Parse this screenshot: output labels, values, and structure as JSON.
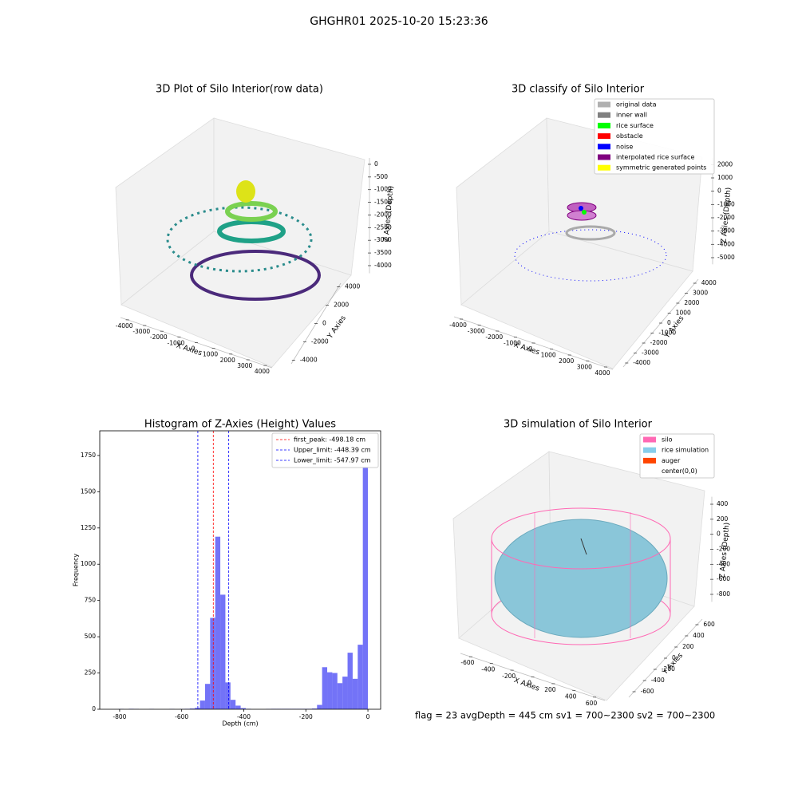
{
  "title": "GHGHR01 2025-10-20 15:23:36",
  "footer": "flag = 23  avgDepth = 445 cm  sv1 = 700~2300  sv2 = 700~2300",
  "chart_data": [
    {
      "type": "scatter3d",
      "title": "3D Plot of Silo Interior(row data)",
      "xlabel": "X Axies",
      "ylabel": "Y Axies",
      "zlabel": "Z Axies (Depth)",
      "xlim": [
        -4400,
        4400
      ],
      "ylim": [
        -4400,
        4400
      ],
      "zlim": [
        -4300,
        250
      ],
      "xticks": [
        -4000,
        -3000,
        -2000,
        -1000,
        0,
        1000,
        2000,
        3000,
        4000
      ],
      "yticks": [
        -4000,
        -2000,
        0,
        2000,
        4000
      ],
      "zticks": [
        0,
        -500,
        -1000,
        -1500,
        -2000,
        -2500,
        -3000,
        -3500,
        -4000
      ]
    },
    {
      "type": "scatter3d",
      "title": "3D classify of Silo Interior",
      "xlabel": "X Axies",
      "ylabel": "Y Axies",
      "zlabel": "Z Axies (Depth)",
      "xlim": [
        -4400,
        4400
      ],
      "ylim": [
        -4400,
        4400
      ],
      "zlim": [
        -5500,
        2500
      ],
      "xticks": [
        -4000,
        -3000,
        -2000,
        -1000,
        0,
        1000,
        2000,
        3000,
        4000
      ],
      "yticks": [
        -4000,
        -3000,
        -2000,
        -1000,
        0,
        1000,
        2000,
        3000,
        4000
      ],
      "zticks": [
        2000,
        1000,
        0,
        -1000,
        -2000,
        -3000,
        -4000,
        -5000
      ],
      "legend": [
        {
          "name": "original data",
          "color": "#b0b0b0"
        },
        {
          "name": "inner wall",
          "color": "#808080"
        },
        {
          "name": "rice surface",
          "color": "#00ff00"
        },
        {
          "name": "obstacle",
          "color": "#ff0000"
        },
        {
          "name": "noise",
          "color": "#0000ff"
        },
        {
          "name": "interpolated rice surface",
          "color": "#800080"
        },
        {
          "name": "symmetric generated points",
          "color": "#ffff00"
        }
      ]
    },
    {
      "type": "histogram",
      "title": "Histogram of Z-Axies (Height) Values",
      "xlabel": "Depth (cm)",
      "ylabel": "Frequency",
      "color": "#5050f5",
      "bins": [
        -820,
        -803.6,
        -787.2,
        -770.8,
        -754.4,
        -738,
        -721.6,
        -705.2,
        -688.8,
        -672.4,
        -656,
        -639.6,
        -623.2,
        -606.8,
        -590.4,
        -574,
        -557.6,
        -541.2,
        -524.8,
        -508.4,
        -492,
        -475.6,
        -459.2,
        -442.8,
        -426.4,
        -410,
        -393.6,
        -377.2,
        -360.8,
        -344.4,
        -328,
        -311.6,
        -295.2,
        -278.8,
        -262.4,
        -246,
        -229.6,
        -213.2,
        -196.8,
        -180.4,
        -164,
        -147.6,
        -131.2,
        -114.8,
        -98.4,
        -82,
        -65.6,
        -49.2,
        -32.8,
        -16.4,
        0
      ],
      "counts": [
        0,
        2,
        0,
        3,
        2,
        0,
        0,
        2,
        0,
        0,
        0,
        2,
        0,
        2,
        3,
        5,
        10,
        60,
        175,
        630,
        1190,
        790,
        185,
        65,
        25,
        8,
        3,
        0,
        0,
        0,
        2,
        3,
        3,
        3,
        3,
        3,
        3,
        3,
        3,
        5,
        30,
        290,
        255,
        250,
        180,
        225,
        390,
        210,
        445,
        1820
      ],
      "xlim": [
        -864,
        41
      ],
      "ylim": [
        0,
        1920
      ],
      "xticks": [
        -800,
        -600,
        -400,
        -200,
        0
      ],
      "yticks": [
        0,
        250,
        500,
        750,
        1000,
        1250,
        1500,
        1750
      ],
      "vlines": [
        {
          "value": -498.18,
          "label": "first_peak: -498.18 cm",
          "color": "#ff0000"
        },
        {
          "value": -448.39,
          "label": "Upper_limit: -448.39 cm",
          "color": "#0000ff"
        },
        {
          "value": -547.97,
          "label": "Lower_limit: -547.97 cm",
          "color": "#0000ff"
        }
      ],
      "legend_loc": "upper right"
    },
    {
      "type": "surface3d",
      "title": "3D simulation of Silo Interior",
      "xlabel": "X Axies",
      "ylabel": "Y Axies",
      "zlabel": "Z Axies (Depth)",
      "xlim": [
        -700,
        700
      ],
      "ylim": [
        -700,
        700
      ],
      "zlim": [
        -900,
        500
      ],
      "xticks": [
        -600,
        -400,
        -200,
        0,
        200,
        400,
        600
      ],
      "yticks": [
        -600,
        -400,
        -200,
        0,
        200,
        400,
        600
      ],
      "zticks": [
        400,
        200,
        0,
        -200,
        -400,
        -600,
        -800
      ],
      "legend": [
        {
          "name": "silo",
          "color": "#ff69b4"
        },
        {
          "name": "rice simulation",
          "color": "#87ceeb"
        },
        {
          "name": "auger",
          "color": "#ff4500"
        },
        {
          "name": "center(0,0)",
          "color": null
        }
      ]
    }
  ]
}
